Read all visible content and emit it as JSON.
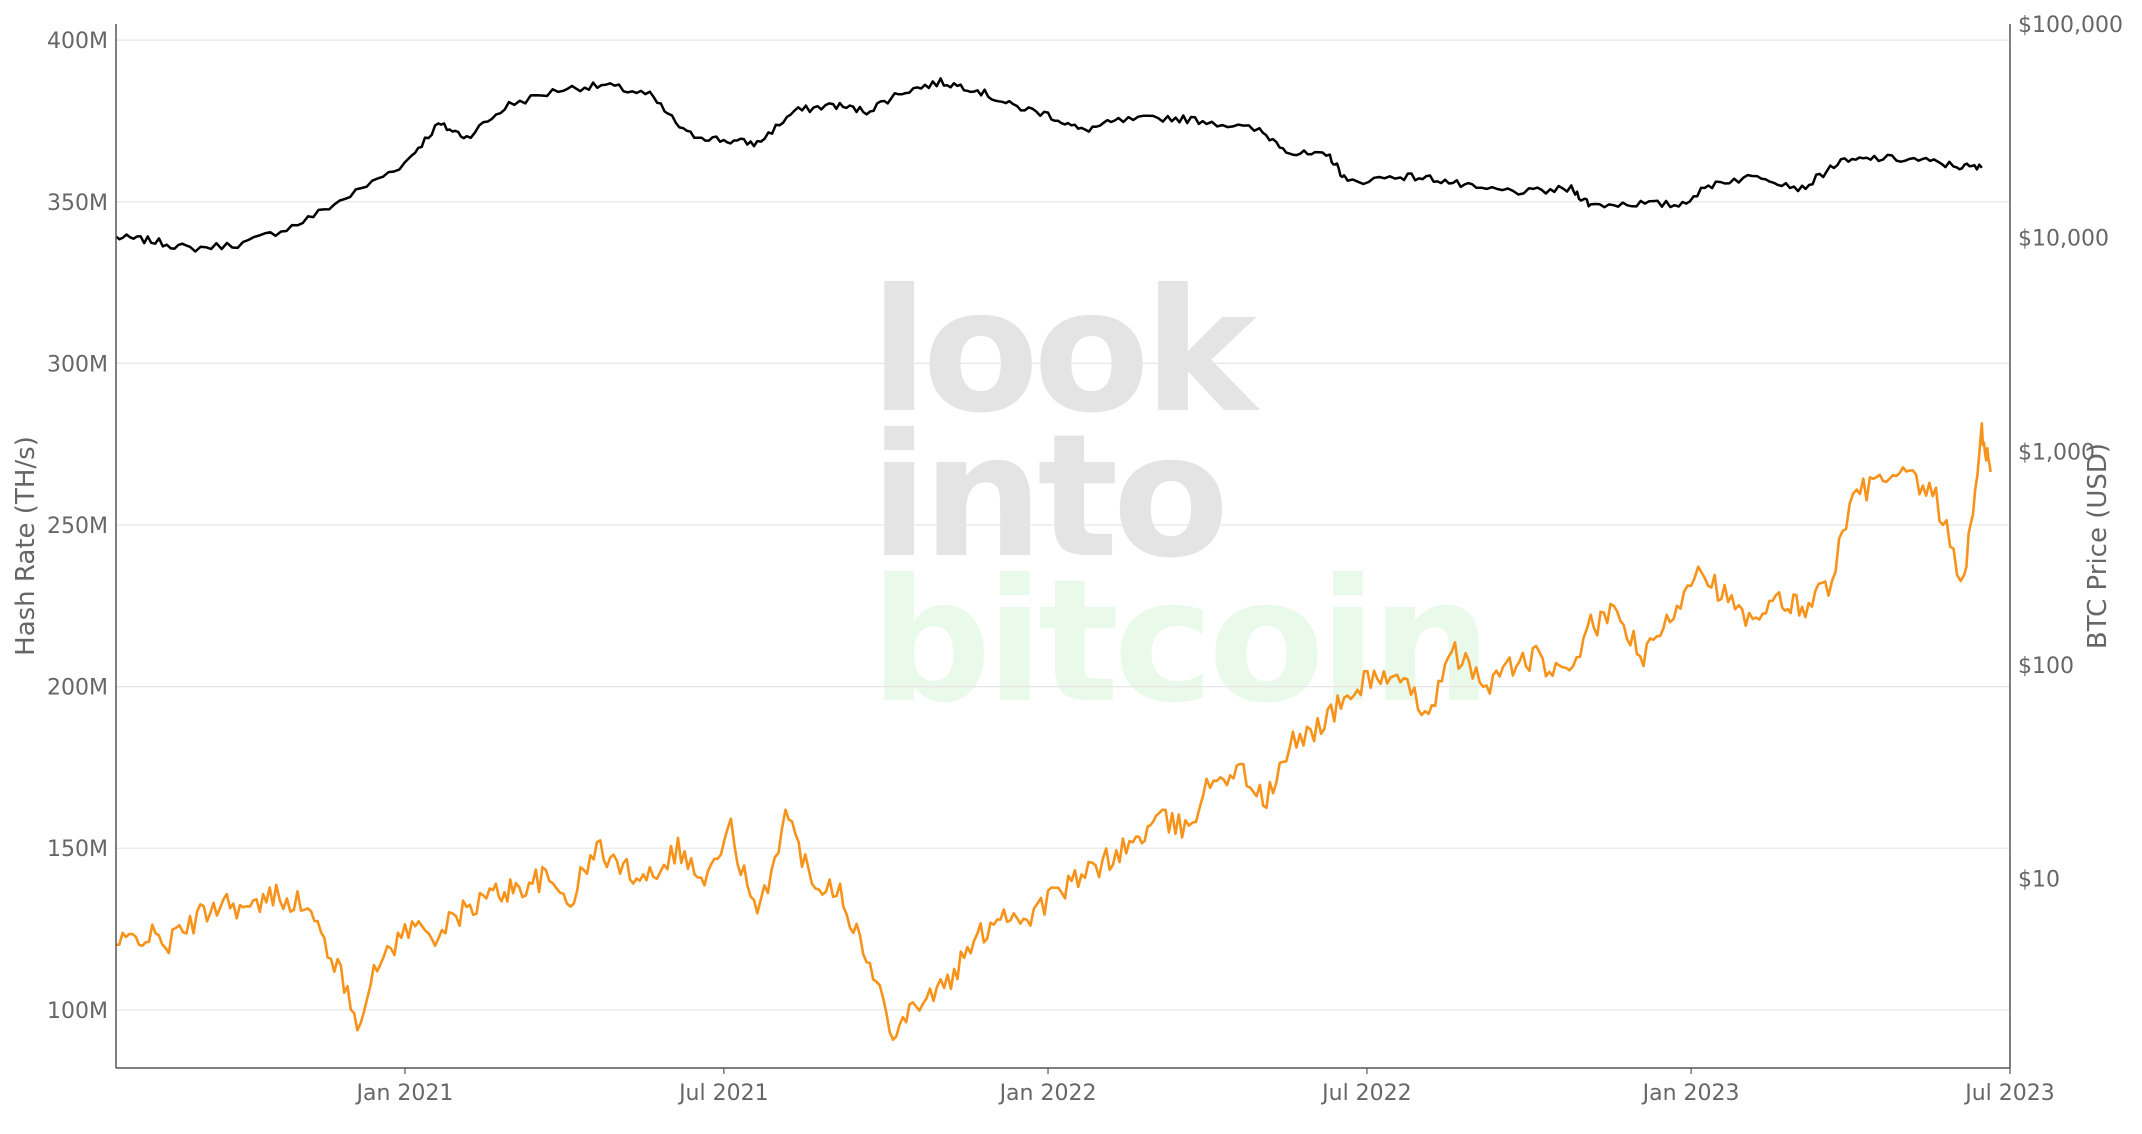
{
  "chart_data": {
    "type": "line",
    "title": "",
    "watermark": [
      "look",
      "into",
      "bitcoin"
    ],
    "x_ticks": [
      "Jan 2021",
      "Jul 2021",
      "Jan 2022",
      "Jul 2022",
      "Jan 2023",
      "Jul 2023"
    ],
    "xlim": [
      "2020-07-21",
      "2023-07-01"
    ],
    "y_left": {
      "label": "Hash Rate (TH/s)",
      "ticks": [
        "100M",
        "150M",
        "200M",
        "250M",
        "300M",
        "350M",
        "400M"
      ],
      "range": [
        82,
        405
      ]
    },
    "y_right": {
      "label": "BTC Price (USD)",
      "scale": "log",
      "ticks": [
        "$10",
        "$100",
        "$1,000",
        "$10,000",
        "$100,000"
      ],
      "range": [
        1.3,
        100000
      ]
    },
    "grid": true,
    "colors": {
      "black_series": "#000000",
      "orange_series": "#f7931a",
      "grid": "#e6e6e6",
      "axis": "#555555",
      "watermark_gray": "#e4e4e4",
      "watermark_green": "#eafaea"
    },
    "series": [
      {
        "axis": "right",
        "color": "#f7931a",
        "x": [
          "2020-07-21",
          "2020-08-05",
          "2020-08-20",
          "2020-09-05",
          "2020-09-20",
          "2020-10-05",
          "2020-10-20",
          "2020-11-05",
          "2020-11-20",
          "2020-12-05",
          "2020-12-20",
          "2021-01-05",
          "2021-01-20",
          "2021-02-05",
          "2021-02-20",
          "2021-03-05",
          "2021-03-20",
          "2021-04-05",
          "2021-04-20",
          "2021-05-05",
          "2021-05-20",
          "2021-06-05",
          "2021-06-20",
          "2021-07-05",
          "2021-07-20",
          "2021-08-05",
          "2021-08-20",
          "2021-09-05",
          "2021-09-20",
          "2021-10-05",
          "2021-10-20",
          "2021-11-05",
          "2021-11-20",
          "2021-12-05",
          "2021-12-20",
          "2022-01-05",
          "2022-01-20",
          "2022-02-05",
          "2022-02-20",
          "2022-03-05",
          "2022-03-20",
          "2022-04-05",
          "2022-04-20",
          "2022-05-05",
          "2022-05-20",
          "2022-06-05",
          "2022-06-20",
          "2022-07-05",
          "2022-07-20",
          "2022-08-05",
          "2022-08-20",
          "2022-09-05",
          "2022-09-20",
          "2022-10-05",
          "2022-10-20",
          "2022-11-05",
          "2022-11-20",
          "2022-12-05",
          "2022-12-20",
          "2023-01-05",
          "2023-01-20",
          "2023-02-05",
          "2023-02-20",
          "2023-03-05",
          "2023-03-20",
          "2023-04-05",
          "2023-04-20",
          "2023-05-05",
          "2023-05-20",
          "2023-06-05",
          "2023-06-15",
          "2023-06-20"
        ],
        "values": [
          4.8,
          5.5,
          5.0,
          6.5,
          8.0,
          7.0,
          8.5,
          7.5,
          4.5,
          2.2,
          4.5,
          6.0,
          5.5,
          7.2,
          8.5,
          9.0,
          10.0,
          8.0,
          14.0,
          11.0,
          10.5,
          14.0,
          9.5,
          17.0,
          6.3,
          20.0,
          10.0,
          9.0,
          4.2,
          2.0,
          2.7,
          3.2,
          5.0,
          7.0,
          6.5,
          8.5,
          10.0,
          12.5,
          15.0,
          19.0,
          17.0,
          30.0,
          32.0,
          23.0,
          43.0,
          53.0,
          70.0,
          92.0,
          80.0,
          62.0,
          115.0,
          80.0,
          98.0,
          108.0,
          86.0,
          150.0,
          175.0,
          105.0,
          165.0,
          300.0,
          210.0,
          150.0,
          200.0,
          185.0,
          240.0,
          650.0,
          720.0,
          750.0,
          590.0,
          240.0,
          1250.0,
          800.0
        ]
      }
    ]
  }
}
